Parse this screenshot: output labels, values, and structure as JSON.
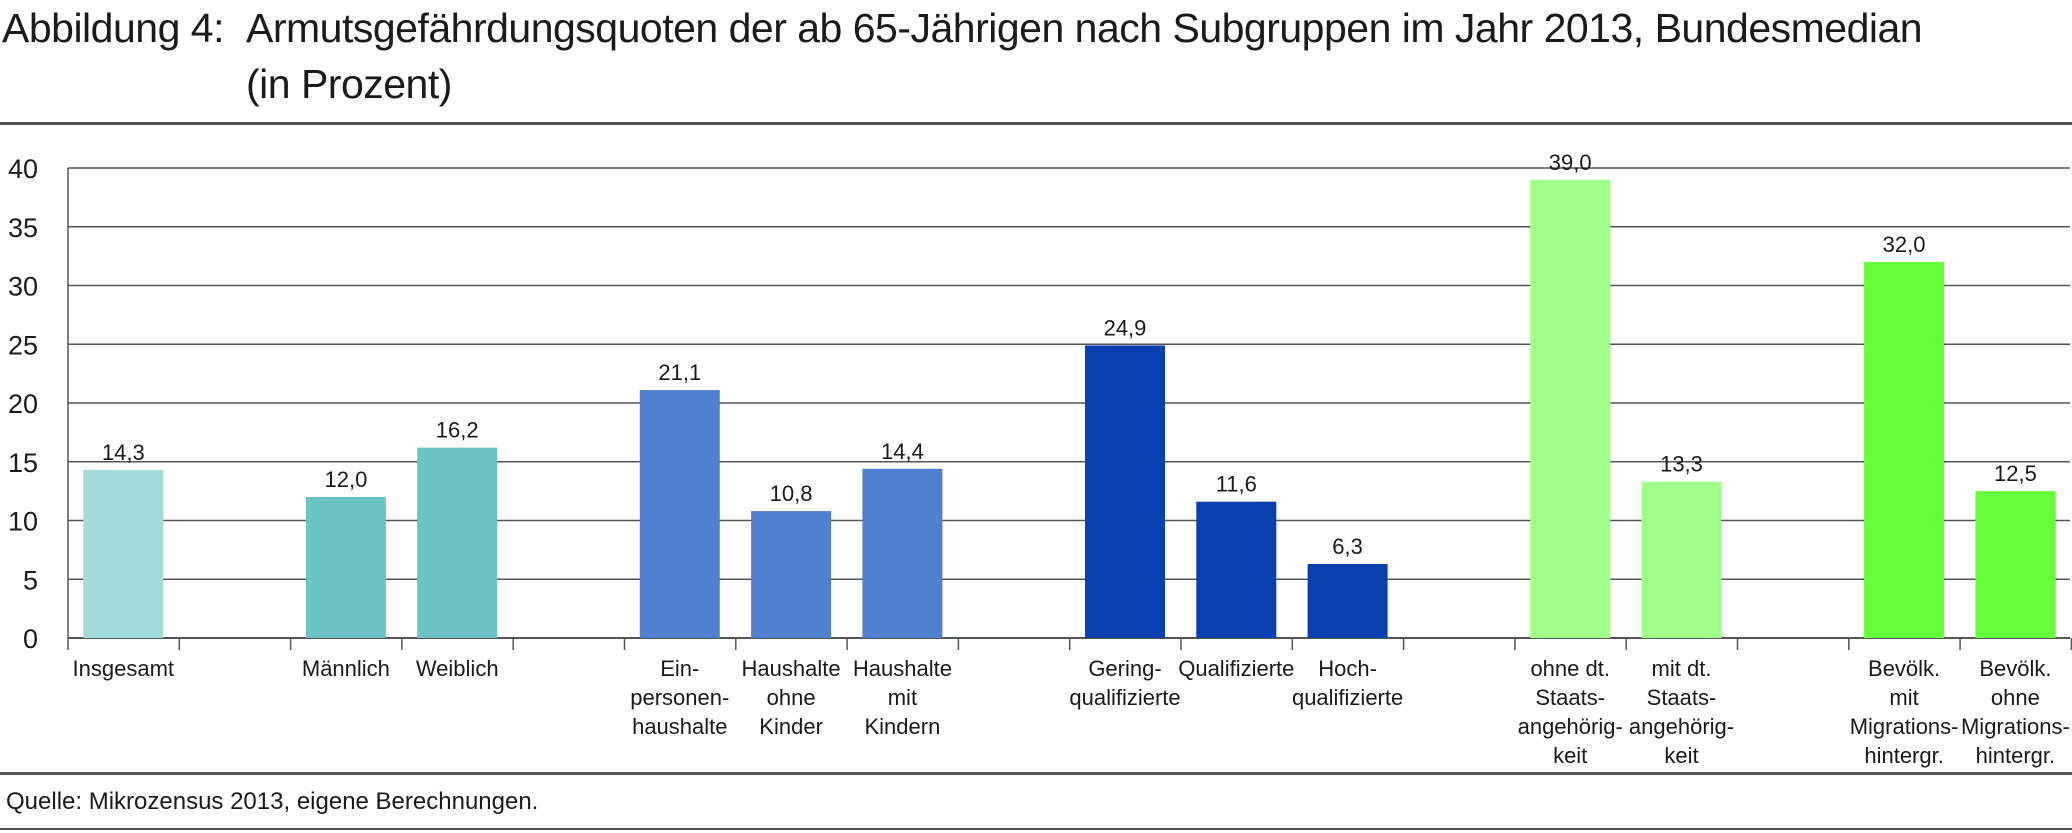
{
  "title": {
    "prefix": "Abbildung 4:",
    "line1": "Armutsgefährdungsquoten der ab 65-Jährigen nach Subgruppen im Jahr 2013, Bundesmedian",
    "line2": "(in Prozent)"
  },
  "source": "Quelle: Mikrozensus 2013, eigene Berechnungen.",
  "chart_data": {
    "type": "bar",
    "ylim": [
      0,
      40
    ],
    "yticks": [
      0,
      5,
      10,
      15,
      20,
      25,
      30,
      35,
      40
    ],
    "grid": true,
    "legend": "none",
    "bars": [
      {
        "label": [
          "Insgesamt"
        ],
        "value": 14.3,
        "value_label": "14,3",
        "color": "#a2dcda"
      },
      {
        "label": [
          "Männlich"
        ],
        "value": 12.0,
        "value_label": "12,0",
        "color": "#6bc3c3"
      },
      {
        "label": [
          "Weiblich"
        ],
        "value": 16.2,
        "value_label": "16,2",
        "color": "#6bc3c3"
      },
      {
        "label": [
          "Ein-",
          "personen-",
          "haushalte"
        ],
        "value": 21.1,
        "value_label": "21,1",
        "color": "#5080d0"
      },
      {
        "label": [
          "Haushalte",
          "ohne",
          "Kinder"
        ],
        "value": 10.8,
        "value_label": "10,8",
        "color": "#5080d0"
      },
      {
        "label": [
          "Haushalte",
          "mit",
          "Kindern"
        ],
        "value": 14.4,
        "value_label": "14,4",
        "color": "#5080d0"
      },
      {
        "label": [
          "Gering-",
          "qualifizierte"
        ],
        "value": 24.9,
        "value_label": "24,9",
        "color": "#0840b0"
      },
      {
        "label": [
          "Qualifizierte"
        ],
        "value": 11.6,
        "value_label": "11,6",
        "color": "#0840b0"
      },
      {
        "label": [
          "Hoch-",
          "qualifizierte"
        ],
        "value": 6.3,
        "value_label": "6,3",
        "color": "#0840b0"
      },
      {
        "label": [
          "ohne dt.",
          "Staats-",
          "angehörig-",
          "keit"
        ],
        "value": 39.0,
        "value_label": "39,0",
        "color": "#a0ff88"
      },
      {
        "label": [
          "mit dt.",
          "Staats-",
          "angehörig-",
          "keit"
        ],
        "value": 13.3,
        "value_label": "13,3",
        "color": "#a0ff88"
      },
      {
        "label": [
          "Bevölk.",
          "mit",
          "Migrations-",
          "hintergr."
        ],
        "value": 32.0,
        "value_label": "32,0",
        "color": "#66ff3c"
      },
      {
        "label": [
          "Bevölk.",
          "ohne",
          "Migrations-",
          "hintergr."
        ],
        "value": 12.5,
        "value_label": "12,5",
        "color": "#66ff3c"
      }
    ]
  }
}
